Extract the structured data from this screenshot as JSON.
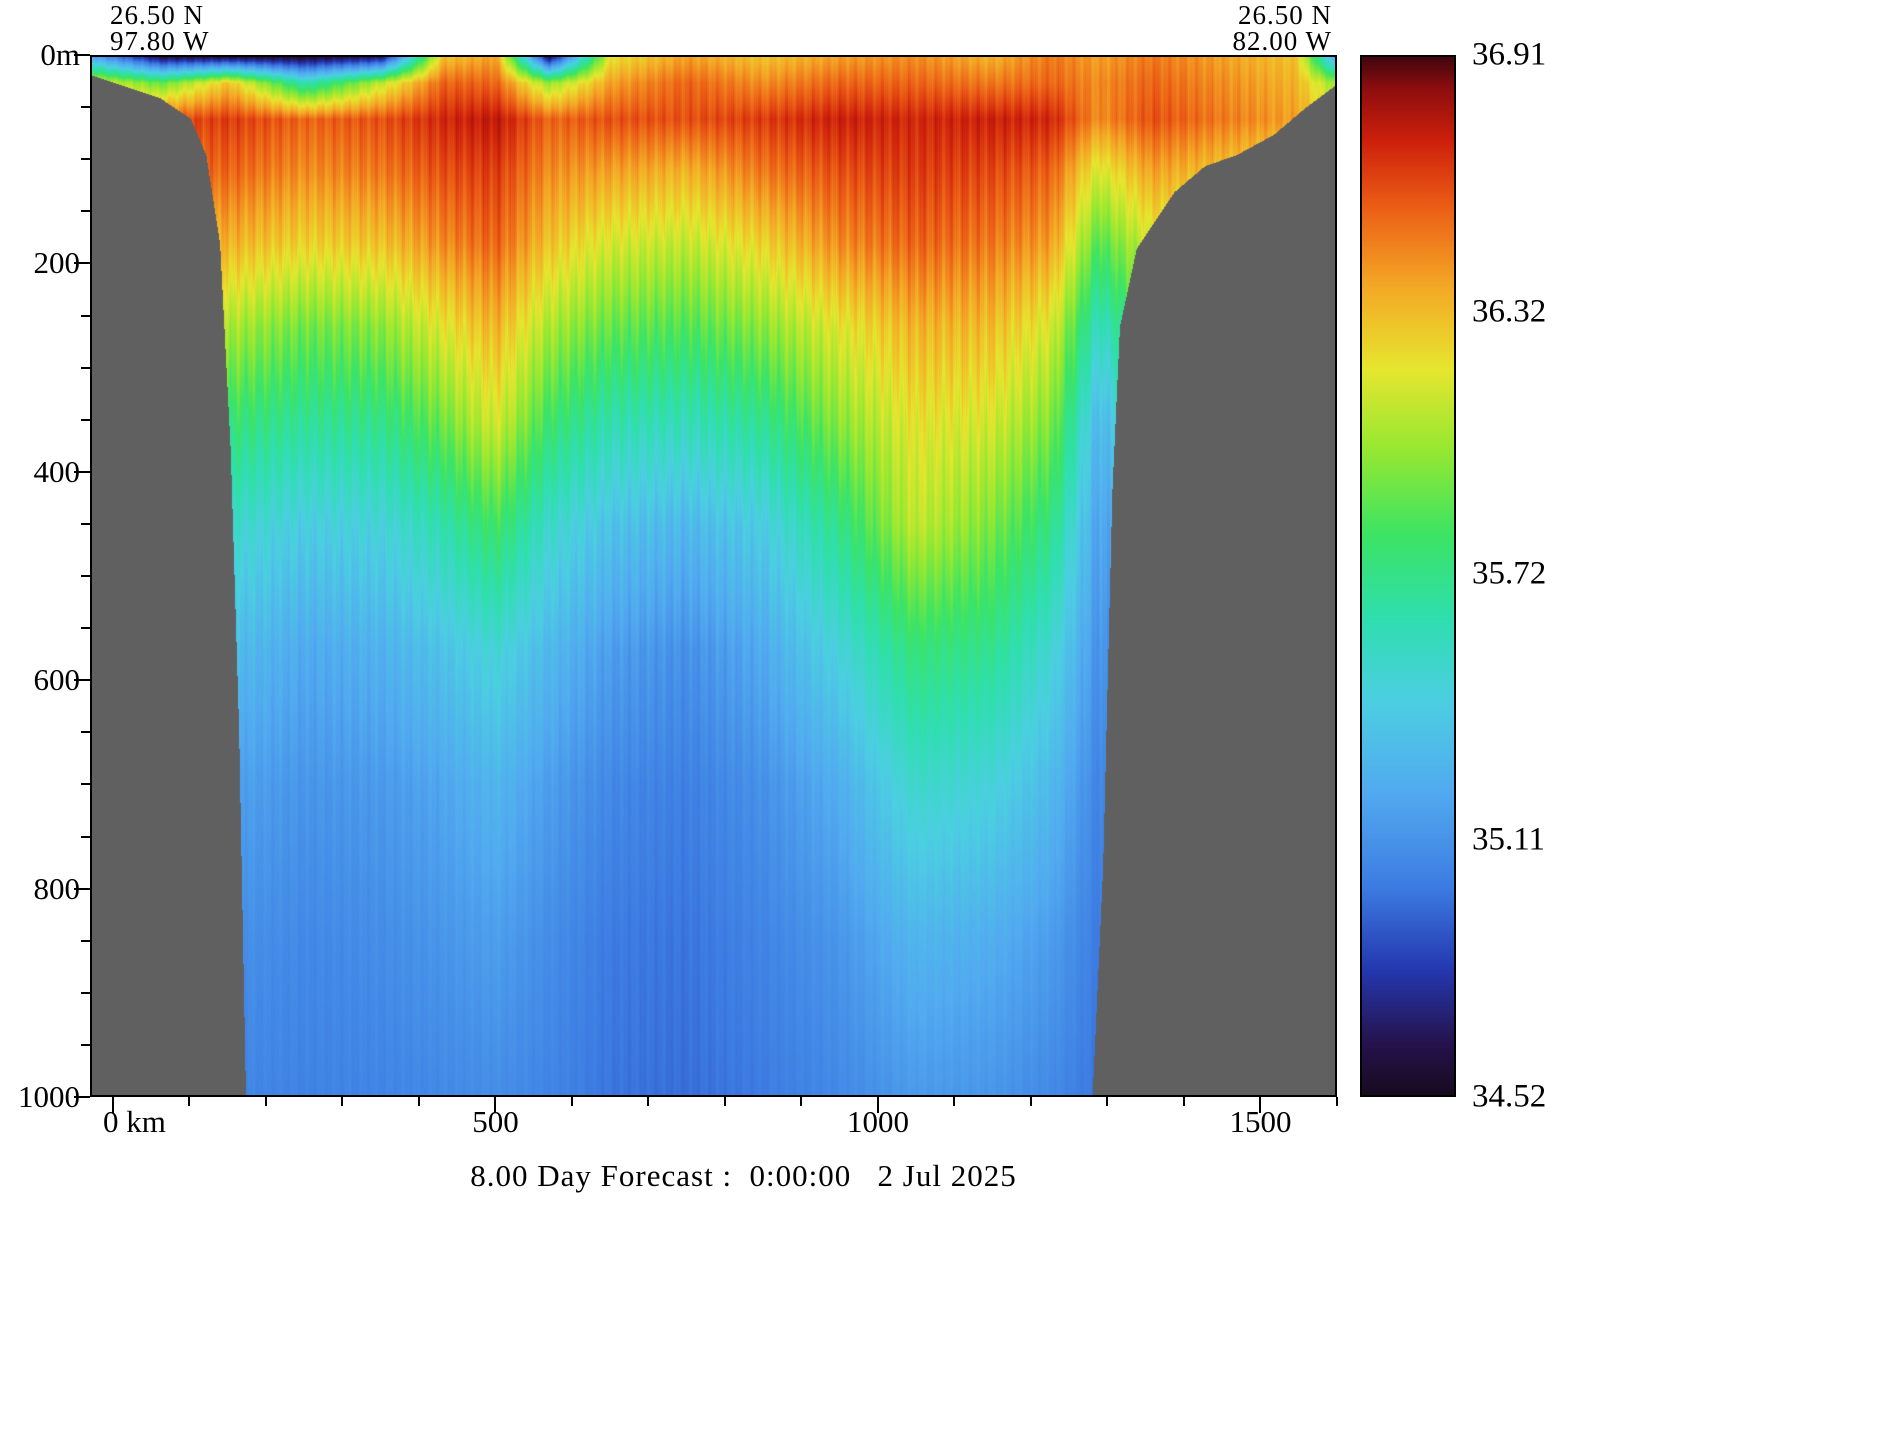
{
  "labels": {
    "top_left_lat": "26.50 N",
    "top_left_lon": "97.80 W",
    "top_right_lat": "26.50 N",
    "top_right_lon": "82.00 W"
  },
  "footer": {
    "title": "8.00 Day Forecast :  0:00:00   2 Jul 2025"
  },
  "axes": {
    "x": {
      "tick_values": [
        0,
        500,
        1000,
        1500
      ],
      "tick_labels": [
        "0 km",
        "500",
        "1000",
        "1500"
      ],
      "minor_step": 100
    },
    "y": {
      "tick_values": [
        0,
        200,
        400,
        600,
        800,
        1000
      ],
      "tick_labels": [
        "0m",
        "200",
        "400",
        "600",
        "800",
        "1000"
      ],
      "minor_step": 50
    }
  },
  "chart_data": {
    "type": "heatmap",
    "title": "8.00 Day Forecast :  0:00:00   2 Jul 2025",
    "x_label": "km",
    "y_label": "m",
    "x_range": [
      -30,
      1600
    ],
    "y_range": [
      0,
      1000
    ],
    "section_endpoints": {
      "west": {
        "lat": "26.50 N",
        "lon": "97.80 W"
      },
      "east": {
        "lat": "26.50 N",
        "lon": "82.00 W"
      }
    },
    "colorbar": {
      "min": 34.52,
      "max": 36.91,
      "tick_values": [
        36.91,
        36.32,
        35.72,
        35.11,
        34.52
      ],
      "tick_labels": [
        "36.91",
        "36.32",
        "35.72",
        "35.11",
        "34.52"
      ],
      "orientation": "vertical"
    },
    "colormap_stops": [
      [
        0.0,
        "#180a20"
      ],
      [
        0.05,
        "#26134e"
      ],
      [
        0.12,
        "#2438b0"
      ],
      [
        0.2,
        "#3d7ce2"
      ],
      [
        0.29,
        "#52aaf0"
      ],
      [
        0.38,
        "#4ccfe2"
      ],
      [
        0.46,
        "#2fdfae"
      ],
      [
        0.54,
        "#3ce464"
      ],
      [
        0.62,
        "#96e832"
      ],
      [
        0.7,
        "#e7e62e"
      ],
      [
        0.78,
        "#f4a826"
      ],
      [
        0.855,
        "#ec5f16"
      ],
      [
        0.92,
        "#ce200c"
      ],
      [
        0.97,
        "#8e0e0e"
      ],
      [
        1.0,
        "#43060f"
      ]
    ],
    "land_mask_color": "#606060",
    "seafloor_profile_km_depth": [
      [
        -30,
        18
      ],
      [
        0,
        25
      ],
      [
        60,
        40
      ],
      [
        100,
        60
      ],
      [
        120,
        95
      ],
      [
        138,
        180
      ],
      [
        152,
        380
      ],
      [
        163,
        650
      ],
      [
        172,
        1005
      ],
      [
        1282,
        1005
      ],
      [
        1296,
        780
      ],
      [
        1308,
        420
      ],
      [
        1318,
        260
      ],
      [
        1340,
        185
      ],
      [
        1390,
        130
      ],
      [
        1430,
        105
      ],
      [
        1470,
        95
      ],
      [
        1520,
        75
      ],
      [
        1560,
        50
      ],
      [
        1600,
        28
      ]
    ],
    "grid": {
      "x_km": [
        -30,
        60,
        150,
        250,
        350,
        430,
        500,
        570,
        650,
        750,
        850,
        950,
        1050,
        1150,
        1230,
        1290,
        1360,
        1450,
        1550,
        1600
      ],
      "depth_m": [
        0,
        25,
        60,
        110,
        180,
        260,
        350,
        450,
        570,
        700,
        850,
        1000
      ],
      "salinity": [
        [
          35.2,
          34.6,
          34.58,
          34.55,
          34.65,
          36.3,
          36.4,
          34.6,
          36.2,
          36.4,
          36.3,
          36.4,
          36.45,
          36.35,
          36.5,
          36.4,
          36.5,
          36.4,
          36.3,
          35.2
        ],
        [
          36.2,
          35.9,
          36.3,
          35.6,
          36.1,
          36.55,
          36.55,
          36.0,
          36.4,
          36.55,
          36.45,
          36.55,
          36.55,
          36.5,
          36.55,
          36.45,
          36.55,
          36.45,
          36.35,
          36.0
        ],
        [
          36.5,
          36.6,
          36.65,
          36.55,
          36.6,
          36.7,
          36.75,
          36.55,
          36.6,
          36.6,
          36.65,
          36.72,
          36.7,
          36.72,
          36.7,
          36.45,
          36.6,
          36.5,
          36.4,
          36.2
        ],
        [
          36.45,
          36.5,
          36.55,
          36.45,
          36.5,
          36.6,
          36.65,
          36.45,
          36.4,
          36.35,
          36.5,
          36.6,
          36.65,
          36.62,
          36.55,
          36.15,
          36.4,
          36.3,
          36.2,
          36.1
        ],
        [
          36.25,
          36.3,
          36.35,
          36.25,
          36.3,
          36.45,
          36.55,
          36.3,
          36.15,
          36.1,
          36.25,
          36.45,
          36.55,
          36.5,
          36.4,
          35.85,
          36.15,
          36.05,
          36.0,
          35.95
        ],
        [
          35.95,
          36.0,
          36.05,
          35.92,
          35.98,
          36.18,
          36.35,
          36.05,
          35.9,
          35.85,
          35.98,
          36.18,
          36.35,
          36.32,
          36.15,
          35.55,
          35.9,
          35.82,
          35.78,
          35.75
        ],
        [
          35.7,
          35.74,
          35.78,
          35.68,
          35.72,
          35.92,
          36.15,
          35.8,
          35.62,
          35.58,
          35.7,
          35.98,
          36.2,
          36.15,
          35.95,
          35.3,
          35.62,
          35.56,
          35.52,
          35.5
        ],
        [
          35.44,
          35.48,
          35.52,
          35.42,
          35.46,
          35.62,
          35.82,
          35.52,
          35.36,
          35.3,
          35.42,
          35.72,
          36.1,
          35.95,
          35.72,
          35.18,
          35.4,
          35.35,
          35.32,
          35.3
        ],
        [
          35.24,
          35.28,
          35.32,
          35.22,
          35.26,
          35.36,
          35.48,
          35.3,
          35.16,
          35.1,
          35.22,
          35.46,
          35.76,
          35.7,
          35.48,
          35.1,
          35.24,
          35.2,
          35.18,
          35.16
        ],
        [
          35.12,
          35.15,
          35.18,
          35.12,
          35.14,
          35.2,
          35.28,
          35.16,
          35.06,
          35.02,
          35.1,
          35.24,
          35.52,
          35.46,
          35.3,
          35.04,
          35.12,
          35.1,
          35.08,
          35.06
        ],
        [
          35.06,
          35.08,
          35.1,
          35.06,
          35.08,
          35.12,
          35.16,
          35.08,
          35.0,
          34.98,
          35.04,
          35.12,
          35.28,
          35.24,
          35.15,
          35.0,
          35.05,
          35.04,
          35.03,
          35.02
        ],
        [
          35.02,
          35.04,
          35.05,
          35.03,
          35.04,
          35.06,
          35.08,
          35.04,
          34.98,
          34.96,
          35.0,
          35.06,
          35.14,
          35.12,
          35.06,
          34.98,
          35.02,
          35.01,
          35.0,
          35.0
        ]
      ]
    }
  }
}
